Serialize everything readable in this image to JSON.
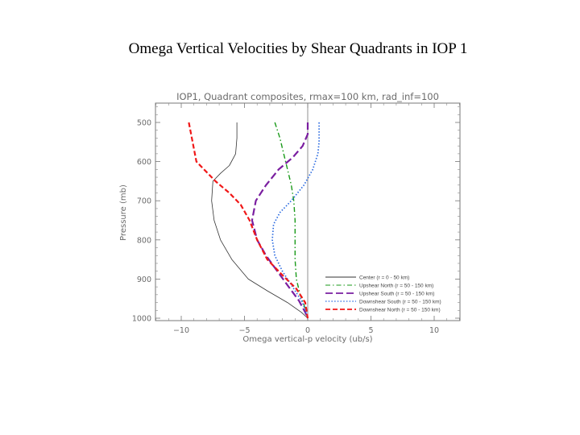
{
  "slide_title": "Omega Vertical Velocities by Shear Quadrants in IOP 1",
  "chart_data": {
    "type": "line",
    "title": "IOP1, Quadrant composites, rmax=100 km, rad_inf=100",
    "xlabel": "Omega vertical-p velocity (ub/s)",
    "ylabel": "Pressure (mb)",
    "xlim": [
      -12,
      12
    ],
    "ylim": [
      1000,
      460
    ],
    "xticks": [
      -10,
      -5,
      0,
      5,
      10
    ],
    "xtick_labels": [
      "-10",
      "-5",
      "0",
      "5",
      "10"
    ],
    "yticks": [
      500,
      600,
      700,
      800,
      900,
      1000
    ],
    "ytick_labels": [
      "500",
      "600",
      "700",
      "800",
      "900",
      "1000"
    ],
    "zero_line_x": 0,
    "legend_position": "bottom-right",
    "series": [
      {
        "name": "Center (r = 0 - 50 km)",
        "color": "#333333",
        "dash": "solid",
        "width": 0.8,
        "x": [
          -5.6,
          -5.6,
          -5.7,
          -6.2,
          -6.9,
          -7.5,
          -7.6,
          -7.4,
          -6.9,
          -6.0,
          -4.7,
          -3.2,
          -1.6,
          -0.5,
          0
        ],
        "y": [
          500,
          540,
          580,
          610,
          630,
          650,
          700,
          750,
          800,
          850,
          900,
          930,
          960,
          985,
          1000
        ]
      },
      {
        "name": "Upshear North (r = 50 - 150 km)",
        "color": "#1a9a1a",
        "dash": "6 3 1.5 3",
        "width": 1.4,
        "x": [
          -2.6,
          -2.2,
          -1.9,
          -1.6,
          -1.3,
          -1.1,
          -1.0,
          -1.0,
          -1.0,
          -0.9,
          -0.6,
          -0.2,
          0
        ],
        "y": [
          500,
          540,
          580,
          620,
          660,
          700,
          750,
          800,
          850,
          900,
          940,
          975,
          1000
        ]
      },
      {
        "name": "Upshear South (r = 50 - 150 km)",
        "color": "#7a1ea0",
        "dash": "9 4",
        "width": 2.2,
        "x": [
          0,
          0,
          -0.4,
          -1.2,
          -2.3,
          -3.3,
          -4.1,
          -4.4,
          -4.0,
          -3.3,
          -2.4,
          -1.5,
          -0.7,
          -0.2,
          0
        ],
        "y": [
          500,
          530,
          560,
          590,
          620,
          660,
          700,
          750,
          800,
          840,
          880,
          920,
          955,
          985,
          1000
        ]
      },
      {
        "name": "Downshear South (r = 50 - 150 km)",
        "color": "#2a6ae0",
        "dash": "1.5 2.2",
        "width": 1.7,
        "x": [
          0.9,
          0.9,
          0.8,
          0.4,
          -0.3,
          -1.3,
          -2.2,
          -2.7,
          -2.8,
          -2.6,
          -2.0,
          -1.2,
          -0.4,
          0
        ],
        "y": [
          500,
          550,
          580,
          620,
          660,
          700,
          730,
          760,
          800,
          840,
          880,
          920,
          960,
          1000
        ]
      },
      {
        "name": "Downshear North (r = 50 - 150 km)",
        "color": "#f01818",
        "dash": "6 3",
        "width": 2.2,
        "x": [
          -9.4,
          -9.1,
          -8.8,
          -7.9,
          -7.3,
          -6.2,
          -5.3,
          -4.6,
          -4.0,
          -3.2,
          -2.0,
          -0.9,
          -0.2,
          0
        ],
        "y": [
          500,
          550,
          600,
          630,
          650,
          680,
          710,
          750,
          800,
          850,
          890,
          925,
          960,
          1000
        ]
      }
    ]
  }
}
